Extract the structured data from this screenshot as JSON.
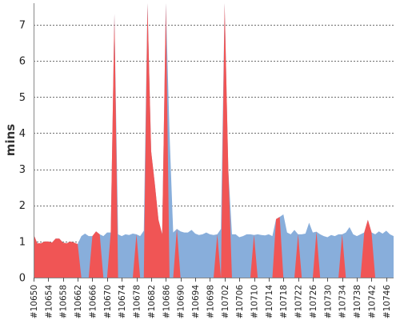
{
  "chart_data": {
    "type": "area",
    "title": "",
    "xlabel": "",
    "ylabel": "mins",
    "ylim": [
      0,
      7.6
    ],
    "y_ticks": [
      0,
      1,
      2,
      3,
      4,
      5,
      6,
      7
    ],
    "grid": "horizontal",
    "x_tick_labels": [
      "#10650",
      "#10654",
      "#10658",
      "#10662",
      "#10666",
      "#10670",
      "#10674",
      "#10678",
      "#10682",
      "#10686",
      "#10690",
      "#10694",
      "#10698",
      "#10702",
      "#10706",
      "#10710",
      "#10714",
      "#10718",
      "#10722",
      "#10726",
      "#10730",
      "#10734",
      "#10738",
      "#10742",
      "#10746"
    ],
    "x": [
      10650,
      10651,
      10652,
      10653,
      10654,
      10655,
      10656,
      10657,
      10658,
      10659,
      10660,
      10661,
      10662,
      10663,
      10664,
      10665,
      10666,
      10667,
      10668,
      10669,
      10670,
      10671,
      10672,
      10673,
      10674,
      10675,
      10676,
      10677,
      10678,
      10679,
      10680,
      10681,
      10682,
      10683,
      10684,
      10685,
      10686,
      10687,
      10688,
      10689,
      10690,
      10691,
      10692,
      10693,
      10694,
      10695,
      10696,
      10697,
      10698,
      10699,
      10700,
      10701,
      10702,
      10703,
      10704,
      10705,
      10706,
      10707,
      10708,
      10709,
      10710,
      10711,
      10712,
      10713,
      10714,
      10715,
      10716,
      10717,
      10718,
      10719,
      10720,
      10721,
      10722,
      10723,
      10724,
      10725,
      10726,
      10727,
      10728,
      10729,
      10730,
      10731,
      10732,
      10733,
      10734,
      10735,
      10736,
      10737,
      10738,
      10739,
      10740,
      10741,
      10742,
      10743,
      10744,
      10745,
      10746,
      10747,
      10748
    ],
    "series": [
      {
        "color": "#88aedb",
        "values": [
          1.2,
          0.95,
          0.95,
          1.0,
          1.0,
          0.97,
          1.08,
          1.08,
          0.97,
          0.95,
          1.0,
          0.97,
          0.93,
          1.15,
          1.22,
          1.15,
          1.15,
          1.28,
          1.2,
          1.15,
          1.25,
          1.25,
          7.3,
          1.2,
          1.15,
          1.2,
          1.18,
          1.22,
          1.2,
          1.15,
          1.3,
          7.6,
          3.5,
          2.6,
          1.6,
          1.2,
          7.6,
          4.0,
          1.25,
          1.35,
          1.28,
          1.25,
          1.25,
          1.32,
          1.22,
          1.18,
          1.2,
          1.25,
          1.2,
          1.18,
          1.2,
          1.35,
          7.6,
          3.0,
          1.2,
          1.2,
          1.12,
          1.15,
          1.2,
          1.2,
          1.18,
          1.2,
          1.18,
          1.17,
          1.2,
          1.15,
          1.62,
          1.68,
          1.75,
          1.25,
          1.2,
          1.32,
          1.2,
          1.2,
          1.22,
          1.52,
          1.25,
          1.27,
          1.2,
          1.15,
          1.12,
          1.18,
          1.15,
          1.2,
          1.2,
          1.25,
          1.4,
          1.2,
          1.15,
          1.2,
          1.25,
          1.6,
          1.25,
          1.2,
          1.28,
          1.22,
          1.3,
          1.2,
          1.15
        ]
      },
      {
        "color": "#f05555",
        "values": [
          1.2,
          0.95,
          0.95,
          1.0,
          1.0,
          0.97,
          1.08,
          1.08,
          0.97,
          0.95,
          1.0,
          0.97,
          0.93,
          0,
          0,
          0,
          1.15,
          1.28,
          1.2,
          0,
          0,
          1.25,
          7.3,
          0,
          0,
          0,
          0,
          0,
          1.2,
          0,
          0,
          7.6,
          3.5,
          2.6,
          1.6,
          1.2,
          7.6,
          0,
          0,
          1.35,
          0,
          0,
          0,
          0,
          0,
          0,
          0,
          0,
          0,
          0,
          1.2,
          0,
          7.6,
          3.0,
          0,
          0,
          0,
          0,
          0,
          0,
          1.18,
          0,
          0,
          0,
          0,
          0,
          1.62,
          1.68,
          0,
          0,
          0,
          0,
          1.2,
          0,
          0,
          0,
          0,
          1.27,
          0,
          0,
          0,
          0,
          0,
          0,
          1.2,
          0,
          0,
          0,
          0,
          0,
          1.25,
          1.6,
          1.25,
          0,
          0,
          0,
          0,
          0,
          0
        ]
      }
    ]
  }
}
